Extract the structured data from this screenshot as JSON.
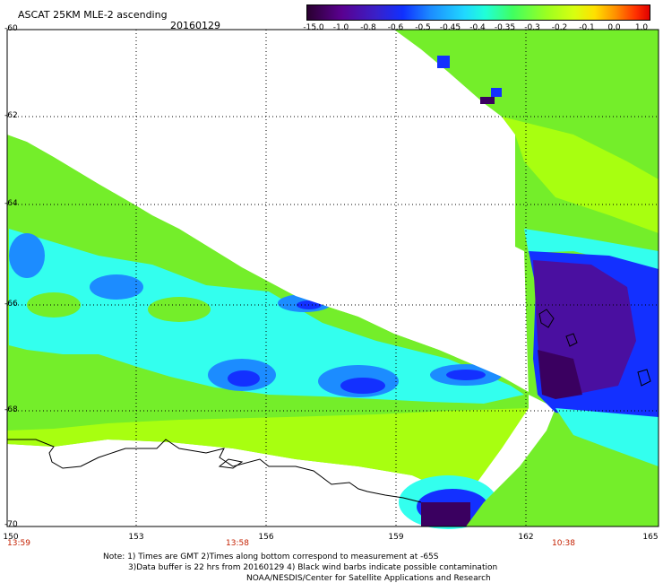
{
  "header": {
    "title": "ASCAT 25KM MLE-2 ascending",
    "date": "20160129"
  },
  "colorbar": {
    "labels": [
      "-15.0",
      "-1.0",
      "-0.8",
      "-0.6",
      "-0.5",
      "-0.45",
      "-0.4",
      "-0.35",
      "-0.3",
      "-0.2",
      "-0.1",
      "0.0",
      "1.0"
    ]
  },
  "axes": {
    "x_ticks": [
      "150",
      "153",
      "156",
      "159",
      "162",
      "165"
    ],
    "y_ticks": [
      "-60",
      "-62",
      "-64",
      "-66",
      "-68",
      "-70"
    ]
  },
  "times": [
    "13:59",
    "13:58",
    "10:38"
  ],
  "notes": {
    "line1": "Note: 1) Times are GMT 2)Times along bottom correspond to measurement at -65S",
    "line2": "3)Data buffer is 22 hrs from 20160129 4) Black wind barbs indicate possible contamination",
    "line3": "NOAA/NESDIS/Center for Satellite Applications and Research"
  },
  "colors": {
    "green": "#74ee2a",
    "lime": "#a8ff10",
    "cyan": "#33ffee",
    "blue": "#1330ff",
    "purple": "#4a0fa0",
    "dark_purple": "#3a0060"
  }
}
